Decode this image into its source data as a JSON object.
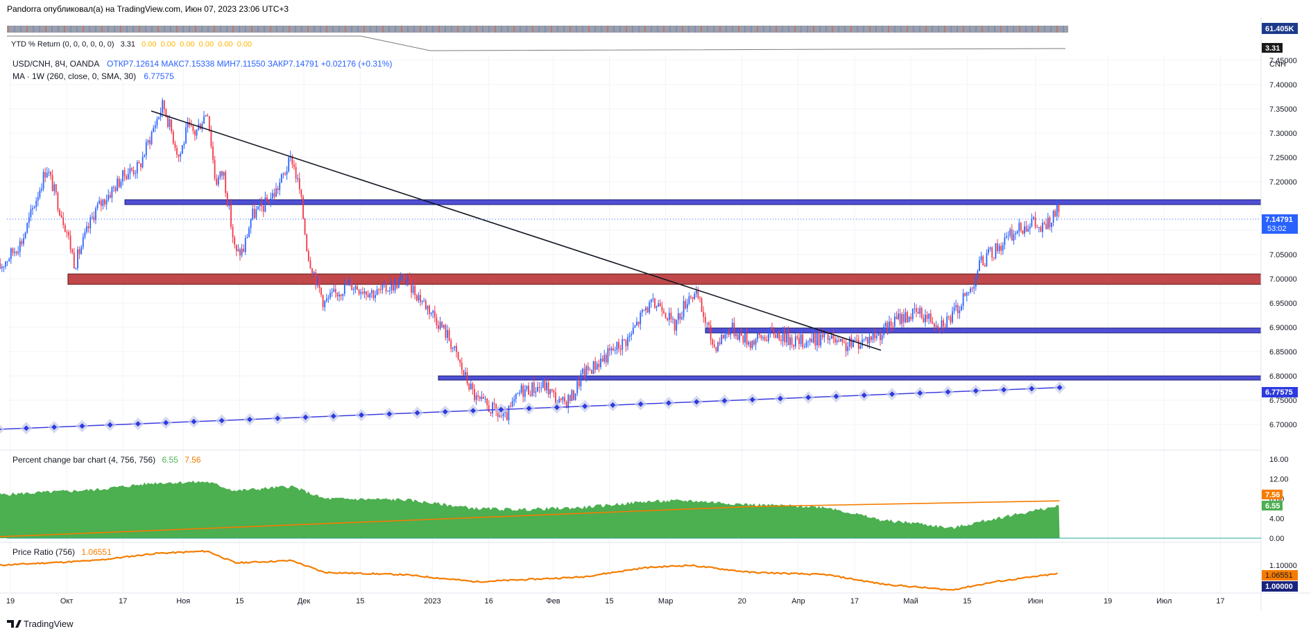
{
  "header": {
    "publish_line": "Pandorra опубликовал(а) на TradingView.com, Июн 07, 2023 23:06 UTC+3"
  },
  "ytd": {
    "legend": "YTD % Return (0, 0, 0, 0, 0, 0)",
    "first_value": "3.31",
    "zeros": "0.00  0.00  0.00  0.00  0.00  0.00",
    "tag_volume": "61.405K",
    "tag_value": "3.31"
  },
  "main": {
    "symbol_line_prefix": "USD/CNH, 8Ч, OANDA",
    "ohlc": "ОТКР7.12614  МАКС7.15338  МИН7.11550  ЗАКР7.14791  +0.02176 (+0.31%)",
    "ma_legend_prefix": "MA · 1W (260, close, 0, SMA, 30)",
    "ma_value": "6.77575",
    "currency": "CNH",
    "price_tag": "7.14791",
    "countdown": "53:02",
    "ma_tag": "6.77575",
    "y_ticks": [
      "7.45000",
      "7.40000",
      "7.35000",
      "7.30000",
      "7.25000",
      "7.20000",
      "7.10000",
      "7.05000",
      "7.00000",
      "6.95000",
      "6.90000",
      "6.85000",
      "6.80000",
      "6.75000",
      "6.70000"
    ]
  },
  "pct_panel": {
    "legend_prefix": "Percent change bar chart (4, 756, 756)",
    "v1": "6.55",
    "v2": "7.56",
    "y_ticks": [
      "16.00",
      "12.00",
      "8.00",
      "4.00",
      "0.00"
    ],
    "tag_orange": "7.56",
    "tag_green": "6.55"
  },
  "ratio_panel": {
    "legend_prefix": "Price Ratio (756)",
    "value": "1.06551",
    "y_ticks": [
      "1.10000"
    ],
    "tag_orange": "1.06551",
    "tag_blue": "1.00000"
  },
  "x_labels": [
    "19",
    "Окт",
    "17",
    "Ноя",
    "15",
    "Дек",
    "15",
    "2023",
    "16",
    "Фев",
    "15",
    "Мар",
    "20",
    "Апр",
    "17",
    "Май",
    "15",
    "Июн",
    "19",
    "Июл",
    "17"
  ],
  "footer": {
    "brand": "TradingView"
  },
  "colors": {
    "up": "#2962ff",
    "down": "#f23645",
    "zone_red": "#c0484a",
    "zone_blue": "#4f4fd6",
    "ma": "#3a3ae0",
    "green": "#4caf50",
    "orange": "#f57c00",
    "grid": "#f0f3fa"
  },
  "chart_data": [
    {
      "type": "line",
      "title": "USD/CNH, 8Ч, OANDA",
      "ylabel": "CNH",
      "ylim": [
        6.67,
        7.48
      ],
      "x_range": [
        "2022-09-19",
        "2023-07-24"
      ],
      "close_path": [
        [
          "2022-09-16",
          7.02
        ],
        [
          "2022-09-22",
          7.08
        ],
        [
          "2022-09-26",
          7.18
        ],
        [
          "2022-09-28",
          7.23
        ],
        [
          "2022-10-03",
          7.1
        ],
        [
          "2022-10-05",
          7.03
        ],
        [
          "2022-10-10",
          7.14
        ],
        [
          "2022-10-14",
          7.18
        ],
        [
          "2022-10-18",
          7.22
        ],
        [
          "2022-10-21",
          7.23
        ],
        [
          "2022-10-25",
          7.32
        ],
        [
          "2022-10-27",
          7.36
        ],
        [
          "2022-10-31",
          7.25
        ],
        [
          "2022-11-02",
          7.31
        ],
        [
          "2022-11-04",
          7.3
        ],
        [
          "2022-11-07",
          7.35
        ],
        [
          "2022-11-09",
          7.2
        ],
        [
          "2022-11-11",
          7.22
        ],
        [
          "2022-11-14",
          7.05
        ],
        [
          "2022-11-16",
          7.06
        ],
        [
          "2022-11-18",
          7.13
        ],
        [
          "2022-11-21",
          7.15
        ],
        [
          "2022-11-24",
          7.18
        ],
        [
          "2022-11-28",
          7.25
        ],
        [
          "2022-11-30",
          7.18
        ],
        [
          "2022-12-02",
          7.05
        ],
        [
          "2022-12-06",
          6.95
        ],
        [
          "2022-12-12",
          6.99
        ],
        [
          "2022-12-19",
          6.97
        ],
        [
          "2022-12-26",
          7.0
        ],
        [
          "2023-01-02",
          6.93
        ],
        [
          "2023-01-06",
          6.88
        ],
        [
          "2023-01-10",
          6.8
        ],
        [
          "2023-01-13",
          6.75
        ],
        [
          "2023-01-17",
          6.73
        ],
        [
          "2023-01-20",
          6.71
        ],
        [
          "2023-01-24",
          6.77
        ],
        [
          "2023-01-30",
          6.78
        ],
        [
          "2023-02-03",
          6.74
        ],
        [
          "2023-02-06",
          6.76
        ],
        [
          "2023-02-08",
          6.8
        ],
        [
          "2023-02-14",
          6.84
        ],
        [
          "2023-02-20",
          6.88
        ],
        [
          "2023-02-24",
          6.94
        ],
        [
          "2023-02-28",
          6.95
        ],
        [
          "2023-03-03",
          6.9
        ],
        [
          "2023-03-07",
          6.97
        ],
        [
          "2023-03-09",
          6.96
        ],
        [
          "2023-03-13",
          6.86
        ],
        [
          "2023-03-17",
          6.9
        ],
        [
          "2023-03-22",
          6.87
        ],
        [
          "2023-03-28",
          6.89
        ],
        [
          "2023-04-03",
          6.87
        ],
        [
          "2023-04-10",
          6.88
        ],
        [
          "2023-04-14",
          6.86
        ],
        [
          "2023-04-18",
          6.87
        ],
        [
          "2023-04-24",
          6.89
        ],
        [
          "2023-04-28",
          6.92
        ],
        [
          "2023-05-03",
          6.93
        ],
        [
          "2023-05-08",
          6.91
        ],
        [
          "2023-05-11",
          6.92
        ],
        [
          "2023-05-16",
          6.98
        ],
        [
          "2023-05-18",
          7.03
        ],
        [
          "2023-05-22",
          7.06
        ],
        [
          "2023-05-26",
          7.09
        ],
        [
          "2023-05-31",
          7.12
        ],
        [
          "2023-06-02",
          7.1
        ],
        [
          "2023-06-05",
          7.12
        ],
        [
          "2023-06-07",
          7.148
        ]
      ]
    },
    {
      "type": "line",
      "title": "MA · 1W (260, close, 0, SMA, 30)",
      "points": [
        [
          "2022-09-16",
          6.69
        ],
        [
          "2023-06-07",
          6.776
        ]
      ]
    },
    {
      "type": "area",
      "title": "Percent change bar chart (4, 756, 756)",
      "ylim": [
        0,
        16
      ],
      "points": [
        [
          "2022-09-16",
          8.8
        ],
        [
          "2022-10-10",
          9.8
        ],
        [
          "2022-10-25",
          11.2
        ],
        [
          "2022-11-07",
          11.4
        ],
        [
          "2022-11-14",
          9.6
        ],
        [
          "2022-11-28",
          10.5
        ],
        [
          "2022-12-06",
          8.0
        ],
        [
          "2022-12-26",
          7.8
        ],
        [
          "2023-01-13",
          6.0
        ],
        [
          "2023-01-24",
          5.8
        ],
        [
          "2023-02-08",
          6.2
        ],
        [
          "2023-02-24",
          7.4
        ],
        [
          "2023-03-07",
          7.6
        ],
        [
          "2023-03-22",
          6.8
        ],
        [
          "2023-04-10",
          6.3
        ],
        [
          "2023-04-24",
          3.6
        ],
        [
          "2023-05-03",
          3.0
        ],
        [
          "2023-05-11",
          2.0
        ],
        [
          "2023-05-22",
          4.0
        ],
        [
          "2023-06-07",
          6.55
        ]
      ],
      "orange_line": [
        [
          "2022-09-16",
          0.3
        ],
        [
          "2023-03-22",
          6.4
        ],
        [
          "2023-06-07",
          7.56
        ]
      ]
    },
    {
      "type": "line",
      "title": "Price Ratio (756)",
      "points": [
        [
          "2022-09-16",
          1.1
        ],
        [
          "2022-10-10",
          1.12
        ],
        [
          "2022-10-25",
          1.15
        ],
        [
          "2022-11-07",
          1.16
        ],
        [
          "2022-11-14",
          1.11
        ],
        [
          "2022-11-28",
          1.12
        ],
        [
          "2022-12-06",
          1.07
        ],
        [
          "2022-12-26",
          1.06
        ],
        [
          "2023-01-13",
          1.03
        ],
        [
          "2023-02-08",
          1.05
        ],
        [
          "2023-02-24",
          1.09
        ],
        [
          "2023-03-07",
          1.1
        ],
        [
          "2023-03-22",
          1.07
        ],
        [
          "2023-04-10",
          1.06
        ],
        [
          "2023-04-24",
          1.02
        ],
        [
          "2023-05-11",
          0.995
        ],
        [
          "2023-05-22",
          1.03
        ],
        [
          "2023-06-07",
          1.0655
        ]
      ]
    }
  ]
}
